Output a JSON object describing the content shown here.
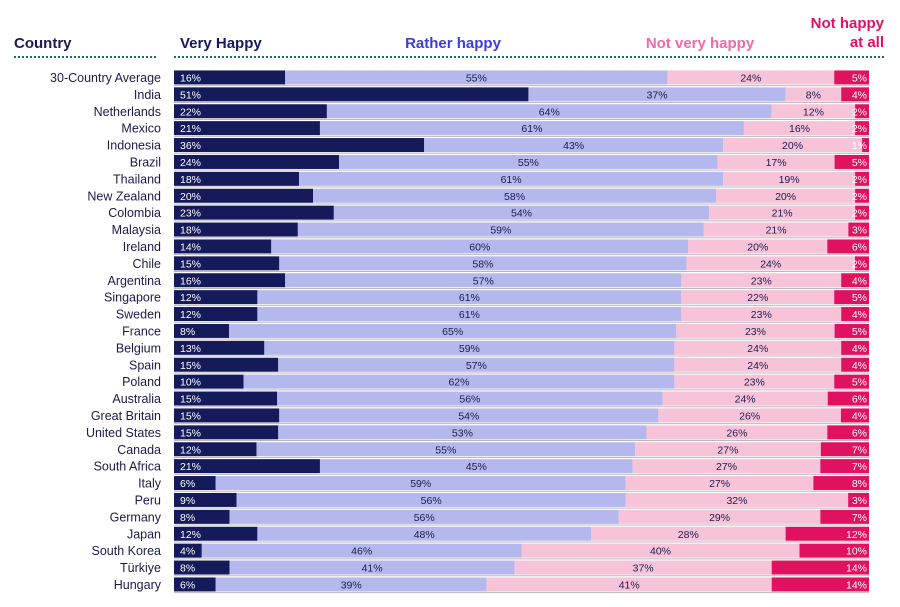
{
  "chart_data": {
    "type": "bar",
    "stacked": true,
    "orientation": "horizontal",
    "headers": {
      "country": "Country",
      "very_happy": "Very Happy",
      "rather_happy": "Rather happy",
      "not_very_happy": "Not very happy",
      "not_happy_line1": "Not happy",
      "not_happy_line2": "at all"
    },
    "colors": {
      "very_happy": "#141a5a",
      "rather_happy": "#b5b8ec",
      "not_very_happy": "#f7c3d8",
      "not_happy": "#e0115f",
      "header_very_happy": "#141a5a",
      "header_rather_happy": "#3b3fd6",
      "header_not_very_happy": "#f06aa5",
      "header_not_happy": "#e0115f",
      "country_text": "#1b1b4b"
    },
    "categories": [
      "30-Country Average",
      "India",
      "Netherlands",
      "Mexico",
      "Indonesia",
      "Brazil",
      "Thailand",
      "New Zealand",
      "Colombia",
      "Malaysia",
      "Ireland",
      "Chile",
      "Argentina",
      "Singapore",
      "Sweden",
      "France",
      "Belgium",
      "Spain",
      "Poland",
      "Australia",
      "Great Britain",
      "United States",
      "Canada",
      "South Africa",
      "Italy",
      "Peru",
      "Germany",
      "Japan",
      "South Korea",
      "Türkiye",
      "Hungary"
    ],
    "series": [
      {
        "name": "Very Happy",
        "values": [
          16,
          51,
          22,
          21,
          36,
          24,
          18,
          20,
          23,
          18,
          14,
          15,
          16,
          12,
          12,
          8,
          13,
          15,
          10,
          15,
          15,
          15,
          12,
          21,
          6,
          9,
          8,
          12,
          4,
          8,
          6
        ]
      },
      {
        "name": "Rather happy",
        "values": [
          55,
          37,
          64,
          61,
          43,
          55,
          61,
          58,
          54,
          59,
          60,
          58,
          57,
          61,
          61,
          65,
          59,
          57,
          62,
          56,
          54,
          53,
          55,
          45,
          59,
          56,
          56,
          48,
          46,
          41,
          39
        ]
      },
      {
        "name": "Not very happy",
        "values": [
          24,
          8,
          12,
          16,
          20,
          17,
          19,
          20,
          21,
          21,
          20,
          24,
          23,
          22,
          23,
          23,
          24,
          24,
          23,
          24,
          26,
          26,
          27,
          27,
          27,
          32,
          29,
          28,
          40,
          37,
          41
        ]
      },
      {
        "name": "Not happy at all",
        "values": [
          5,
          4,
          2,
          2,
          1,
          5,
          2,
          2,
          2,
          3,
          6,
          2,
          4,
          5,
          4,
          5,
          4,
          4,
          5,
          6,
          4,
          6,
          7,
          7,
          8,
          3,
          7,
          12,
          10,
          14,
          14
        ]
      }
    ]
  }
}
